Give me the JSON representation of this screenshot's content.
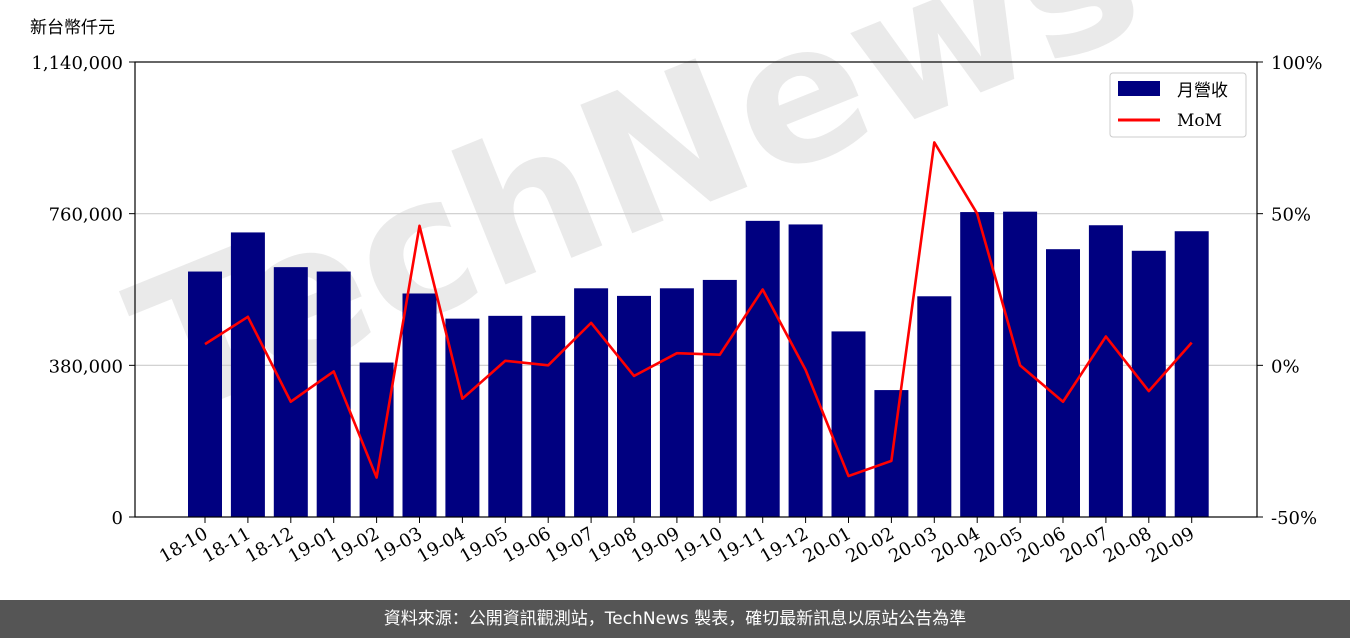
{
  "watermark": "TechNews",
  "footer": "資料來源：公開資訊觀測站，TechNews 製表，確切最新訊息以原站公告為準",
  "colors": {
    "bar": "#000080",
    "line": "#ff0000",
    "grid": "#cccccc",
    "footer_bg": "#555555"
  },
  "chart_data": {
    "type": "bar",
    "ylabel_left": "新台幣仟元",
    "left_ticks": [
      "0",
      "380,000",
      "760,000",
      "1,140,000"
    ],
    "right_ticks": [
      "-50%",
      "0%",
      "50%",
      "100%"
    ],
    "ylim_left": [
      0,
      1140000
    ],
    "ylim_right": [
      -50,
      100
    ],
    "grid": "horizontal",
    "legend_position": "top-right",
    "categories": [
      "18-10",
      "18-11",
      "18-12",
      "19-01",
      "19-02",
      "19-03",
      "19-04",
      "19-05",
      "19-06",
      "19-07",
      "19-08",
      "19-09",
      "19-10",
      "19-11",
      "19-12",
      "20-01",
      "20-02",
      "20-03",
      "20-04",
      "20-05",
      "20-06",
      "20-07",
      "20-08",
      "20-09"
    ],
    "series": [
      {
        "name": "月營收",
        "type": "bar",
        "axis": "left",
        "values": [
          615000,
          713000,
          626000,
          615000,
          387000,
          560000,
          497000,
          504000,
          504000,
          573000,
          554000,
          573000,
          594000,
          742000,
          733000,
          465000,
          318000,
          553000,
          764000,
          765000,
          671000,
          731000,
          667000,
          716000
        ]
      },
      {
        "name": "MoM",
        "type": "line",
        "axis": "right",
        "values": [
          7,
          16,
          -12,
          -2,
          -37,
          46,
          -11,
          1.5,
          0,
          14,
          -3.5,
          4,
          3.5,
          25,
          -1.5,
          -36.5,
          -31.5,
          73.5,
          50,
          0,
          -12,
          9.5,
          -8.5,
          7.5
        ]
      }
    ]
  }
}
